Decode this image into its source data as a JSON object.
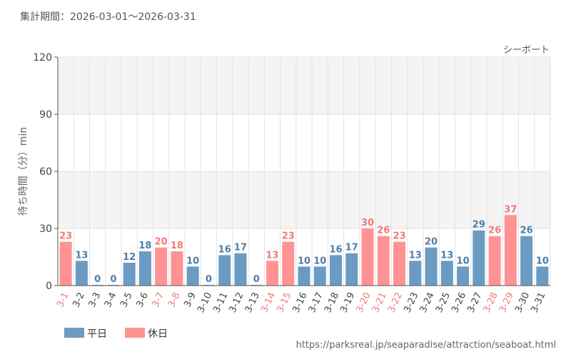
{
  "header": {
    "period": "集計期間：2026-03-01～2026-03-31"
  },
  "footer": {
    "source": "https://parksreal.jp/seaparadise/attraction/seaboat.html"
  },
  "legend": [
    {
      "key": "weekday",
      "label": "平日",
      "color": "#6b9bc3"
    },
    {
      "key": "holiday",
      "label": "休日",
      "color": "#ff9393"
    }
  ],
  "colors": {
    "weekday_bar": "#6b9bc3",
    "holiday_bar": "#ff9393",
    "weekday_text": "#4f7da6",
    "holiday_text": "#f07a7a",
    "band": "#f4f4f4",
    "grid": "#e2e2e2",
    "axis": "#555555"
  },
  "chart_data": {
    "type": "bar",
    "title": "シーボート",
    "ylabel": "待ち時間（分）min",
    "xlabel": "",
    "ylim": [
      0,
      120
    ],
    "yticks": [
      0,
      30,
      60,
      90,
      120
    ],
    "categories": [
      "3-1",
      "3-2",
      "3-3",
      "3-4",
      "3-5",
      "3-6",
      "3-7",
      "3-8",
      "3-9",
      "3-10",
      "3-11",
      "3-12",
      "3-13",
      "3-14",
      "3-15",
      "3-16",
      "3-17",
      "3-18",
      "3-19",
      "3-20",
      "3-21",
      "3-22",
      "3-23",
      "3-24",
      "3-25",
      "3-26",
      "3-27",
      "3-28",
      "3-29",
      "3-30",
      "3-31"
    ],
    "values": [
      23,
      13,
      0,
      0,
      12,
      18,
      20,
      18,
      10,
      0,
      16,
      17,
      0,
      13,
      23,
      10,
      10,
      16,
      17,
      30,
      26,
      23,
      13,
      20,
      13,
      10,
      29,
      26,
      37,
      26,
      10
    ],
    "day_type": [
      "holiday",
      "weekday",
      "weekday",
      "weekday",
      "weekday",
      "weekday",
      "holiday",
      "holiday",
      "weekday",
      "weekday",
      "weekday",
      "weekday",
      "weekday",
      "holiday",
      "holiday",
      "weekday",
      "weekday",
      "weekday",
      "weekday",
      "holiday",
      "holiday",
      "holiday",
      "weekday",
      "weekday",
      "weekday",
      "weekday",
      "weekday",
      "holiday",
      "holiday",
      "weekday",
      "weekday"
    ],
    "grid": true,
    "legend_position": "bottom-left"
  }
}
